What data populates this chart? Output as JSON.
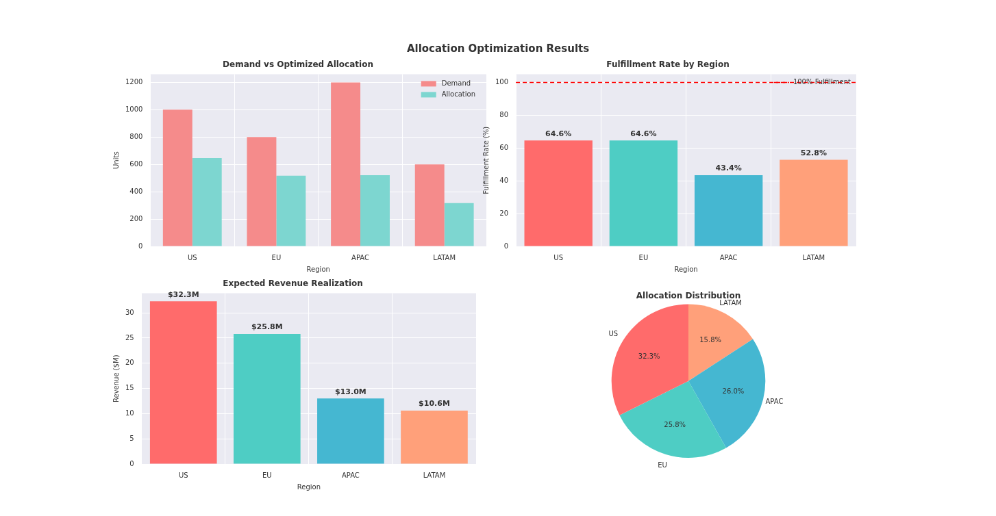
{
  "chart_data": [
    {
      "type": "other",
      "title": "Allocation Optimization Results"
    },
    {
      "type": "bar",
      "title": "Demand vs Optimized Allocation",
      "xlabel": "Region",
      "ylabel": "Units",
      "categories": [
        "US",
        "EU",
        "APAC",
        "LATAM"
      ],
      "series": [
        {
          "name": "Demand",
          "color": "#f58b8b",
          "values": [
            1000,
            800,
            1200,
            600
          ]
        },
        {
          "name": "Allocation",
          "color": "#7dd6d0",
          "values": [
            646,
            517,
            521,
            317
          ]
        }
      ],
      "ylim": [
        0,
        1260
      ],
      "yticks": [
        0,
        200,
        400,
        600,
        800,
        1000,
        1200
      ],
      "grid": true,
      "legend": "top right"
    },
    {
      "type": "bar",
      "title": "Fulfillment Rate by Region",
      "xlabel": "Region",
      "ylabel": "Fulfillment Rate (%)",
      "categories": [
        "US",
        "EU",
        "APAC",
        "LATAM"
      ],
      "values": [
        64.6,
        64.6,
        43.4,
        52.8
      ],
      "colors": [
        "#ff6b6b",
        "#4ecdc4",
        "#45b7d1",
        "#ffa07a"
      ],
      "value_labels": [
        "64.6%",
        "64.6%",
        "43.4%",
        "52.8%"
      ],
      "ylim": [
        0,
        105
      ],
      "yticks": [
        0,
        20,
        40,
        60,
        80,
        100
      ],
      "grid": true,
      "ref_lines": [
        {
          "axis": "y",
          "value": 100,
          "label": "100% Fulfillment",
          "color": "#ff0000",
          "line_style": "dashed"
        }
      ]
    },
    {
      "type": "bar",
      "title": "Expected Revenue Realization",
      "xlabel": "Region",
      "ylabel": "Revenue ($M)",
      "categories": [
        "US",
        "EU",
        "APAC",
        "LATAM"
      ],
      "values": [
        32.3,
        25.8,
        13.0,
        10.6
      ],
      "colors": [
        "#ff6b6b",
        "#4ecdc4",
        "#45b7d1",
        "#ffa07a"
      ],
      "value_labels": [
        "$32.3M",
        "$25.8M",
        "$13.0M",
        "$10.6M"
      ],
      "ylim": [
        0,
        33.9
      ],
      "yticks": [
        0,
        5,
        10,
        15,
        20,
        25,
        30
      ],
      "grid": true
    },
    {
      "type": "pie",
      "title": "Allocation Distribution",
      "categories": [
        "LATAM",
        "APAC",
        "EU",
        "US"
      ],
      "values": [
        15.8,
        26.0,
        25.8,
        32.3
      ],
      "colors": [
        "#ffa07a",
        "#45b7d1",
        "#4ecdc4",
        "#ff6b6b"
      ],
      "value_labels": [
        "15.8%",
        "26.0%",
        "25.8%",
        "32.3%"
      ]
    }
  ]
}
